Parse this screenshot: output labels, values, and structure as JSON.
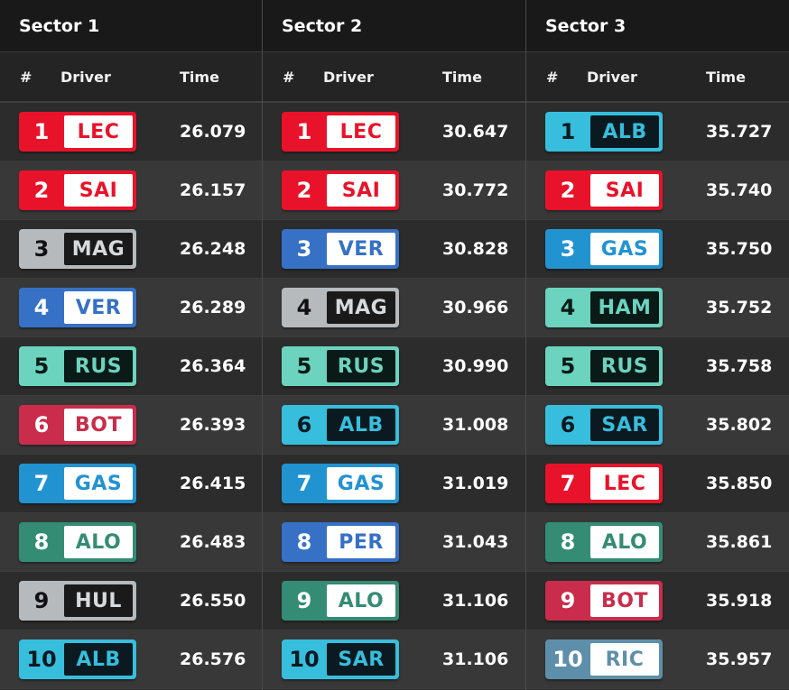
{
  "colors": {
    "ferrari": {
      "bg": "#e8132a",
      "pos": "#ffffff",
      "code_bg": "#ffffff",
      "code": "#e8132a"
    },
    "haas": {
      "bg": "#b6babd",
      "pos": "#111111",
      "code_bg": "#1a1a1a",
      "code": "#d7dadc"
    },
    "redbull": {
      "bg": "#3671c6",
      "pos": "#ffffff",
      "code_bg": "#ffffff",
      "code": "#3671c6"
    },
    "mercedes": {
      "bg": "#6cd3bf",
      "pos": "#0a1a17",
      "code_bg": "#0a1a17",
      "code": "#6cd3bf"
    },
    "alfa": {
      "bg": "#c92d4b",
      "pos": "#ffffff",
      "code_bg": "#ffffff",
      "code": "#c92d4b"
    },
    "alpine": {
      "bg": "#2293d1",
      "pos": "#ffffff",
      "code_bg": "#ffffff",
      "code": "#2293d1"
    },
    "aston": {
      "bg": "#358c75",
      "pos": "#ffffff",
      "code_bg": "#ffffff",
      "code": "#358c75"
    },
    "williams": {
      "bg": "#37bedd",
      "pos": "#0a1a20",
      "code_bg": "#0a1a20",
      "code": "#37bedd"
    },
    "alphatauri": {
      "bg": "#5e8faa",
      "pos": "#ffffff",
      "code_bg": "#ffffff",
      "code": "#5e8faa"
    }
  },
  "sectors": [
    {
      "title": "Sector 1",
      "headers": {
        "num": "#",
        "driver": "Driver",
        "time": "Time"
      },
      "rows": [
        {
          "pos": "1",
          "code": "LEC",
          "time": "26.079",
          "team": "ferrari"
        },
        {
          "pos": "2",
          "code": "SAI",
          "time": "26.157",
          "team": "ferrari"
        },
        {
          "pos": "3",
          "code": "MAG",
          "time": "26.248",
          "team": "haas"
        },
        {
          "pos": "4",
          "code": "VER",
          "time": "26.289",
          "team": "redbull"
        },
        {
          "pos": "5",
          "code": "RUS",
          "time": "26.364",
          "team": "mercedes"
        },
        {
          "pos": "6",
          "code": "BOT",
          "time": "26.393",
          "team": "alfa"
        },
        {
          "pos": "7",
          "code": "GAS",
          "time": "26.415",
          "team": "alpine"
        },
        {
          "pos": "8",
          "code": "ALO",
          "time": "26.483",
          "team": "aston"
        },
        {
          "pos": "9",
          "code": "HUL",
          "time": "26.550",
          "team": "haas"
        },
        {
          "pos": "10",
          "code": "ALB",
          "time": "26.576",
          "team": "williams"
        }
      ]
    },
    {
      "title": "Sector 2",
      "headers": {
        "num": "#",
        "driver": "Driver",
        "time": "Time"
      },
      "rows": [
        {
          "pos": "1",
          "code": "LEC",
          "time": "30.647",
          "team": "ferrari"
        },
        {
          "pos": "2",
          "code": "SAI",
          "time": "30.772",
          "team": "ferrari"
        },
        {
          "pos": "3",
          "code": "VER",
          "time": "30.828",
          "team": "redbull"
        },
        {
          "pos": "4",
          "code": "MAG",
          "time": "30.966",
          "team": "haas"
        },
        {
          "pos": "5",
          "code": "RUS",
          "time": "30.990",
          "team": "mercedes"
        },
        {
          "pos": "6",
          "code": "ALB",
          "time": "31.008",
          "team": "williams"
        },
        {
          "pos": "7",
          "code": "GAS",
          "time": "31.019",
          "team": "alpine"
        },
        {
          "pos": "8",
          "code": "PER",
          "time": "31.043",
          "team": "redbull"
        },
        {
          "pos": "9",
          "code": "ALO",
          "time": "31.106",
          "team": "aston"
        },
        {
          "pos": "10",
          "code": "SAR",
          "time": "31.106",
          "team": "williams"
        }
      ]
    },
    {
      "title": "Sector 3",
      "headers": {
        "num": "#",
        "driver": "Driver",
        "time": "Time"
      },
      "rows": [
        {
          "pos": "1",
          "code": "ALB",
          "time": "35.727",
          "team": "williams"
        },
        {
          "pos": "2",
          "code": "SAI",
          "time": "35.740",
          "team": "ferrari"
        },
        {
          "pos": "3",
          "code": "GAS",
          "time": "35.750",
          "team": "alpine"
        },
        {
          "pos": "4",
          "code": "HAM",
          "time": "35.752",
          "team": "mercedes"
        },
        {
          "pos": "5",
          "code": "RUS",
          "time": "35.758",
          "team": "mercedes"
        },
        {
          "pos": "6",
          "code": "SAR",
          "time": "35.802",
          "team": "williams"
        },
        {
          "pos": "7",
          "code": "LEC",
          "time": "35.850",
          "team": "ferrari"
        },
        {
          "pos": "8",
          "code": "ALO",
          "time": "35.861",
          "team": "aston"
        },
        {
          "pos": "9",
          "code": "BOT",
          "time": "35.918",
          "team": "alfa"
        },
        {
          "pos": "10",
          "code": "RIC",
          "time": "35.957",
          "team": "alphatauri"
        }
      ]
    }
  ]
}
